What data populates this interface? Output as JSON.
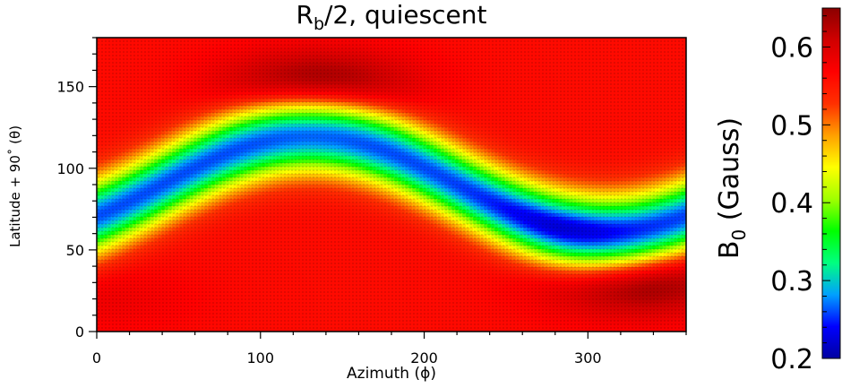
{
  "chart_data": {
    "type": "heatmap",
    "title_main": "R",
    "title_sub": "b",
    "title_rest": "/2, quiescent",
    "xlabel": "Azimuth (ϕ)",
    "ylabel": "Latitude + 90˚ (θ)",
    "xlim": [
      0,
      360
    ],
    "ylim": [
      0,
      180
    ],
    "x_ticks": [
      0,
      100,
      200,
      300
    ],
    "y_ticks": [
      0,
      50,
      100,
      150
    ],
    "colorbar": {
      "label_main": "B",
      "label_sub": "0",
      "label_rest": " (Gauss)",
      "range": [
        0.2,
        0.65
      ],
      "ticks": [
        "0.2",
        "0.3",
        "0.4",
        "0.5",
        "0.6"
      ],
      "colormap": [
        "#0000a0",
        "#0000ff",
        "#00a0ff",
        "#00ff80",
        "#00ff00",
        "#a0ff00",
        "#ffff00",
        "#ffa000",
        "#ff3000",
        "#ff0000",
        "#d00000",
        "#8b0000"
      ]
    },
    "field": {
      "description_free": true,
      "band_center_latitude": 90,
      "band_amplitude": 30,
      "band_phase_deg": 40,
      "band_min_value": 0.26,
      "band_min_value_deep": 0.22,
      "deep_azimuth": 290,
      "background_value": 0.56,
      "maxima": [
        {
          "azimuth": 135,
          "latitude": 152,
          "value": 0.65
        },
        {
          "azimuth": 330,
          "latitude": 30,
          "value": 0.65
        },
        {
          "azimuth": 5,
          "latitude": 20,
          "value": 0.58
        }
      ]
    }
  }
}
